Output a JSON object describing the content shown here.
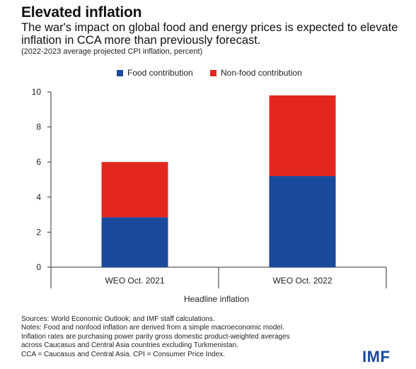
{
  "header": {
    "title": "Elevated inflation",
    "subtitle": "The war's impact on global food and energy prices is expected to elevate inflation in CCA more than previously forecast.",
    "units": "(2022-2023 average projected CPI inflation, percent)"
  },
  "chart_data": {
    "type": "bar",
    "stacked": true,
    "categories": [
      "WEO Oct. 2021",
      "WEO Oct. 2022"
    ],
    "series": [
      {
        "name": "Food contribution",
        "color": "#1b4a9c",
        "values": [
          2.85,
          5.2
        ]
      },
      {
        "name": "Non-food contribution",
        "color": "#e3271f",
        "values": [
          3.15,
          4.6
        ]
      }
    ],
    "xlabel": "Headline inflation",
    "ylabel": "",
    "ylim": [
      0,
      10
    ],
    "yticks": [
      0,
      2,
      4,
      6,
      8,
      10
    ],
    "grid": false,
    "legend_position": "top-center"
  },
  "footer": {
    "notes": [
      "Sources: World Economic Outlook; and IMF staff calculations.",
      "Notes: Food and nonfood inflation are derived from a simple macroeconomic model.",
      "Inflation rates are purchasing power parity gross domestic product-weighted averages",
      "across Caucasus and Central Asia countries excluding Turkmenistan.",
      "CCA = Caucasus and Central Asia. CPI = Consumer Price Index."
    ],
    "logo_text": "IMF",
    "logo_color": "#1b4a9c"
  }
}
